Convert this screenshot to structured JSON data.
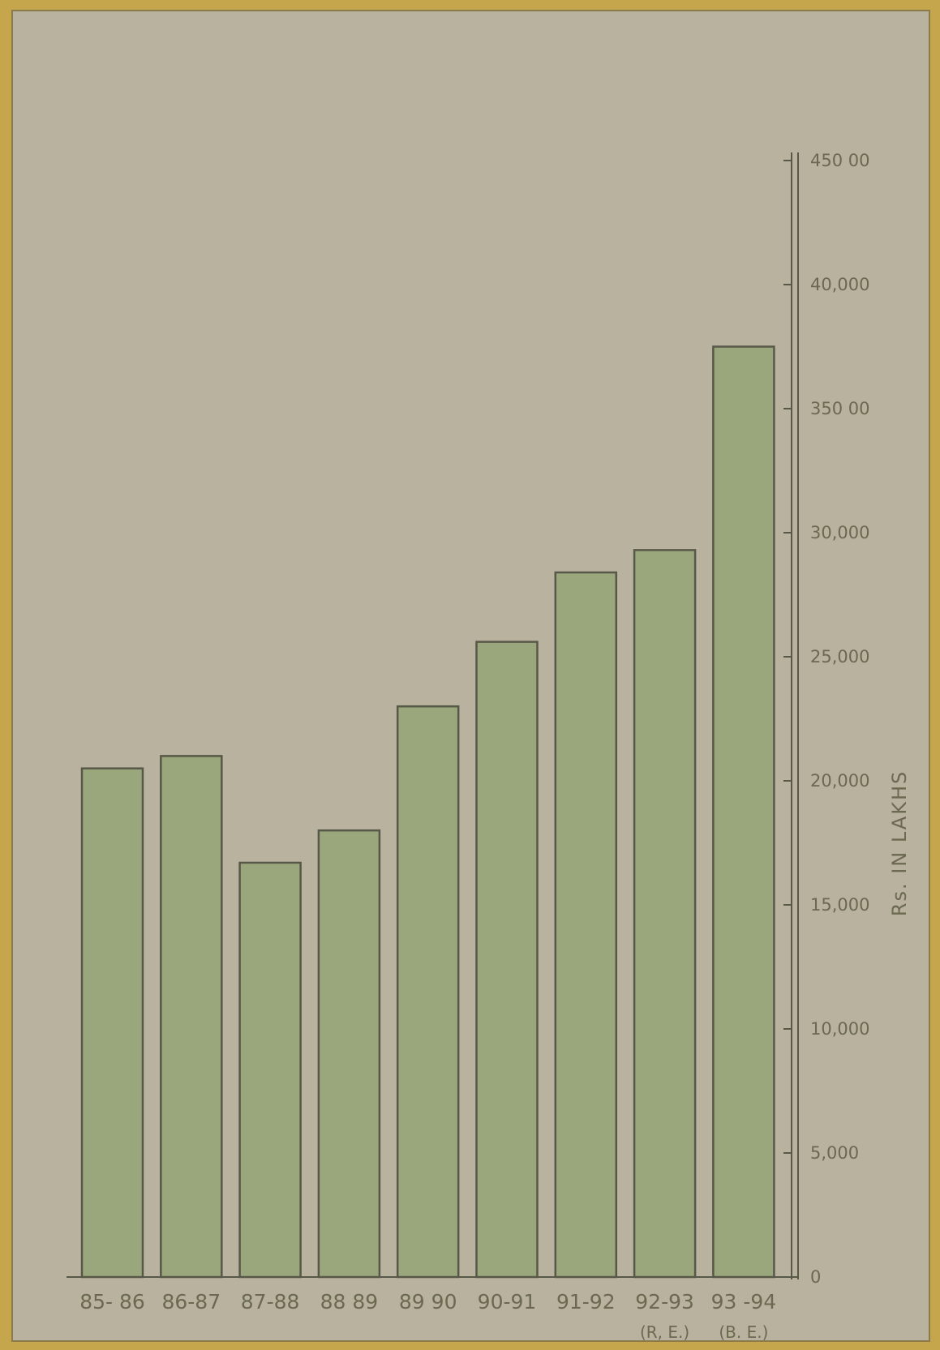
{
  "colors": {
    "background": "#c6a64c",
    "paper": "#b9b29f",
    "bar_fill": "#9aa67c",
    "bar_stroke": "#585848",
    "axis": "#585848",
    "text": "#6b6950"
  },
  "chart_data": {
    "type": "bar",
    "title": "",
    "xlabel": "",
    "ylabel": "Rs. IN LAKHS",
    "ylim": [
      0,
      45000
    ],
    "grid": false,
    "y_axis_side": "right",
    "y_ticks": [
      0,
      5000,
      10000,
      15000,
      20000,
      25000,
      30000,
      35000,
      40000,
      45000
    ],
    "y_tick_labels": [
      "0",
      "5,000",
      "10,000",
      "15,000",
      "20,000",
      "25,000",
      "30,000",
      "350 00",
      "40,000",
      "450 00"
    ],
    "categories": [
      "85- 86",
      "86-87",
      "87-88",
      "88 89",
      "89 90",
      "90-91",
      "91-92",
      "92-93",
      "93 -94"
    ],
    "category_notes": [
      "",
      "",
      "",
      "",
      "",
      "",
      "",
      "(R, E.)",
      "(B. E.)"
    ],
    "values": [
      20500,
      21000,
      16700,
      18000,
      23000,
      25600,
      28400,
      29300,
      37500
    ]
  }
}
